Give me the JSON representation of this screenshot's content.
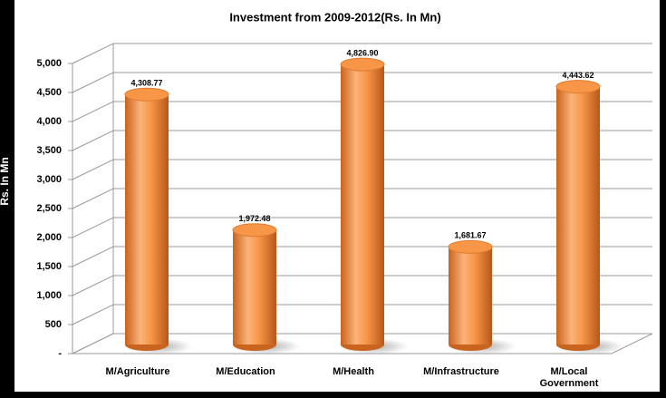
{
  "chart_data": {
    "type": "bar",
    "title": "Investment from 2009-2012(Rs. In Mn)",
    "y_label": "Rs. In Mn",
    "categories": [
      "M/Agriculture",
      "M/Education",
      "M/Health",
      "M/Infrastructure",
      "M/Local Government"
    ],
    "values": [
      4308.77,
      1972.48,
      4826.9,
      1681.67,
      4443.62
    ],
    "value_labels": [
      "4,308.77",
      "1,972.48",
      "4,826.90",
      "1,681.67",
      "4,443.62"
    ],
    "color": "#f79646",
    "ylim": [
      0,
      5000
    ],
    "yticks": [
      {
        "value": 0,
        "label": "-"
      },
      500,
      {
        "value": 1000,
        "label": "1,000"
      },
      {
        "value": 1500,
        "label": "1,500"
      },
      {
        "value": 2000,
        "label": "2,000"
      },
      {
        "value": 2500,
        "label": "2,500"
      },
      {
        "value": 3000,
        "label": "3,000"
      },
      {
        "value": 3500,
        "label": "3,500"
      },
      {
        "value": 4000,
        "label": "4,000"
      },
      {
        "value": 4500,
        "label": "4,500"
      },
      {
        "value": 5000,
        "label": "5,000"
      }
    ],
    "grid": true
  }
}
